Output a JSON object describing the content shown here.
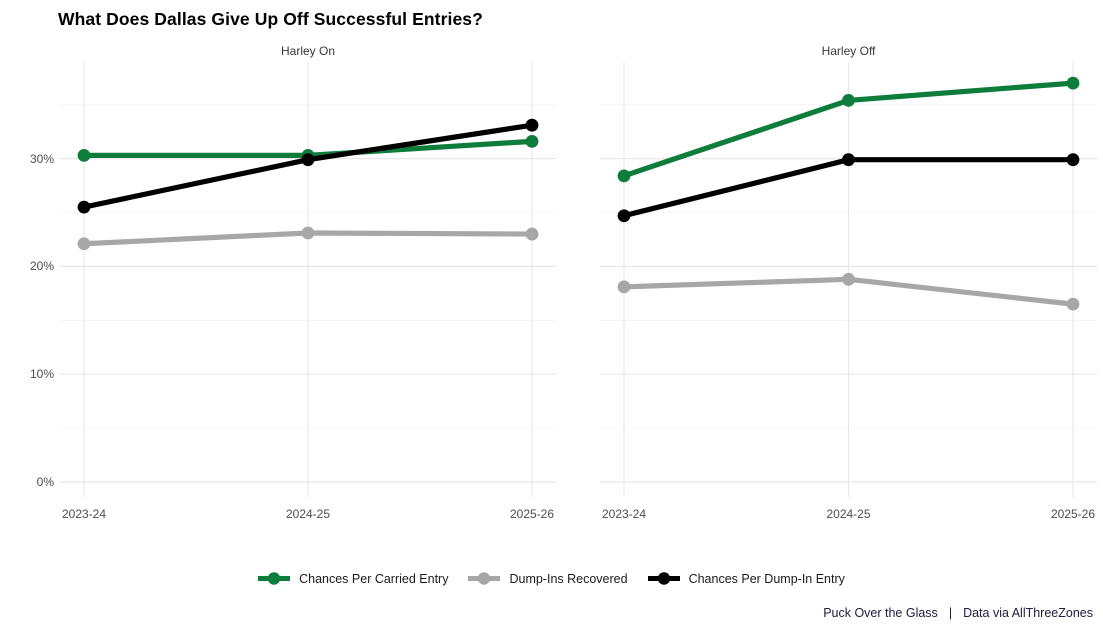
{
  "chart_data": {
    "type": "line",
    "title": "What Does Dallas Give Up Off Successful Entries?",
    "categories": [
      "2023-24",
      "2024-25",
      "2025-26"
    ],
    "y_tick_labels": [
      "0%",
      "10%",
      "20%",
      "30%"
    ],
    "y_major_ticks": [
      0,
      10,
      20,
      30
    ],
    "y_minor_ticks": [
      5,
      15,
      25,
      35
    ],
    "ylim": [
      -1.4,
      39
    ],
    "grid": "major and minor horizontal gridlines plus vertical gridlines at each season, light gray on white",
    "legend_position": "bottom-center",
    "facets": [
      {
        "label": "Harley On",
        "series": [
          {
            "name": "Chances Per Carried Entry",
            "color": "#0e7d3c",
            "values": [
              30.3,
              30.3,
              31.6
            ]
          },
          {
            "name": "Dump-Ins Recovered",
            "color": "#a7a7a7",
            "values": [
              22.1,
              23.1,
              23.0
            ]
          },
          {
            "name": "Chances Per Dump-In Entry",
            "color": "#000000",
            "values": [
              25.5,
              29.9,
              33.1
            ]
          }
        ]
      },
      {
        "label": "Harley Off",
        "series": [
          {
            "name": "Chances Per Carried Entry",
            "color": "#0e7d3c",
            "values": [
              28.4,
              35.4,
              37.0
            ]
          },
          {
            "name": "Dump-Ins Recovered",
            "color": "#a7a7a7",
            "values": [
              18.1,
              18.8,
              16.5
            ]
          },
          {
            "name": "Chances Per Dump-In Entry",
            "color": "#000000",
            "values": [
              24.7,
              29.9,
              29.9
            ]
          }
        ]
      }
    ],
    "legend": [
      {
        "label": "Chances Per Carried Entry",
        "color": "#0e7d3c"
      },
      {
        "label": "Dump-Ins Recovered",
        "color": "#a7a7a7"
      },
      {
        "label": "Chances Per Dump-In Entry",
        "color": "#000000"
      }
    ]
  },
  "caption": {
    "left": "Puck Over the Glass",
    "separator": "|",
    "right": "Data via AllThreeZones"
  },
  "colors": {
    "series_green": "#0e7d3c",
    "series_gray": "#a7a7a7",
    "series_black": "#000000",
    "grid_major": "#e8e8e8",
    "grid_minor": "#f4f4f4",
    "axis_text": "#4d4d4d",
    "strip_text": "#383838",
    "caption_text": "#20203f",
    "background": "#ffffff"
  }
}
